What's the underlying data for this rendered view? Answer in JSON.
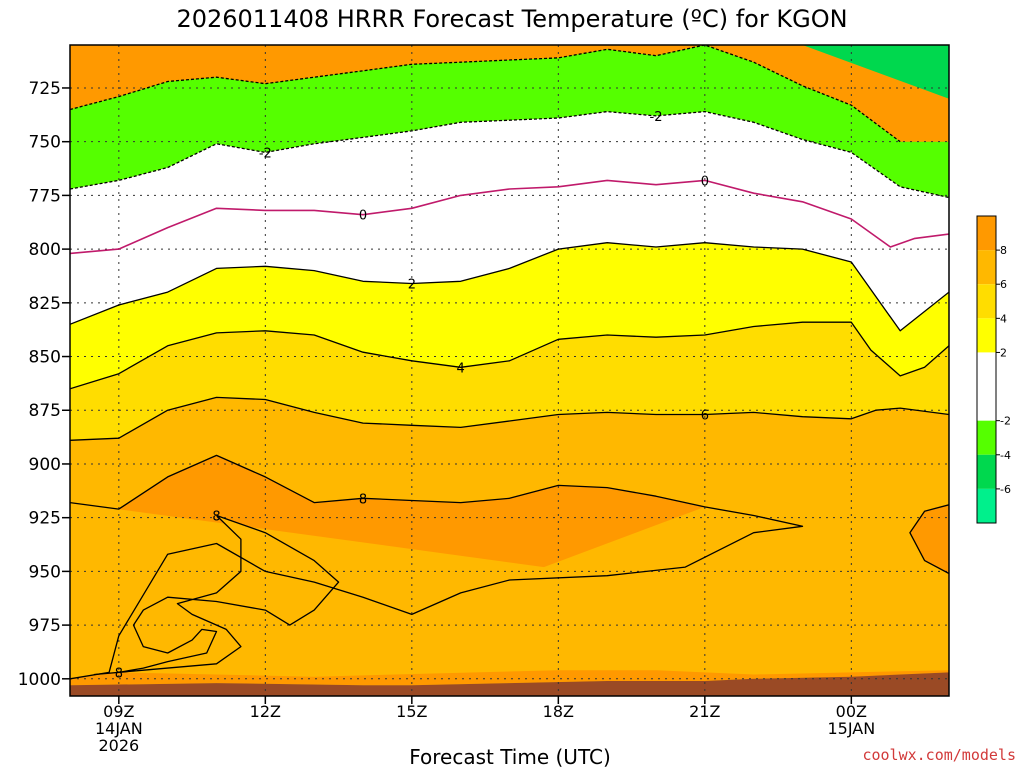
{
  "chart_data": {
    "type": "heatmap",
    "title": "2026011408 HRRR Forecast Temperature (ºC) for KGON",
    "xlabel": "Forecast Time (UTC)",
    "ylabel": "",
    "credit": "coolwx.com/models",
    "x_range": [
      8,
      26
    ],
    "y_range": [
      705,
      1008
    ],
    "y_ticks": [
      725,
      750,
      775,
      800,
      825,
      850,
      875,
      900,
      925,
      950,
      975,
      1000
    ],
    "x_ticks": [
      {
        "x": 9,
        "lines": [
          "09Z",
          "14JAN",
          "2026"
        ]
      },
      {
        "x": 12,
        "lines": [
          "12Z"
        ]
      },
      {
        "x": 15,
        "lines": [
          "15Z"
        ]
      },
      {
        "x": 18,
        "lines": [
          "18Z"
        ]
      },
      {
        "x": 21,
        "lines": [
          "21Z"
        ]
      },
      {
        "x": 24,
        "lines": [
          "00Z",
          "15JAN"
        ]
      }
    ],
    "grid": true,
    "colorbar": {
      "placement": "right",
      "bands": [
        {
          "range": "-8 to -6",
          "color": "#00f08c"
        },
        {
          "range": "-6 to -4",
          "color": "#00d84e"
        },
        {
          "range": "-4 to -2",
          "color": "#55ff00"
        },
        {
          "range": "-2 to 0",
          "color": "#ffffff"
        },
        {
          "range": "0 to 2",
          "color": "#ffffff"
        },
        {
          "range": "2 to 4",
          "color": "#ffff00"
        },
        {
          "range": "4 to 6",
          "color": "#ffdd00"
        },
        {
          "range": "6 to 8",
          "color": "#ffb800"
        },
        {
          "range": "8 to 10",
          "color": "#ff9900"
        }
      ],
      "tick_labels": [
        "8",
        "6",
        "4",
        "2",
        "-2",
        "-4",
        "-6"
      ]
    },
    "ground_color": "#9a4a25",
    "isotherms": [
      {
        "value": -4,
        "label": "",
        "style": "dashed",
        "points": [
          [
            8,
            735
          ],
          [
            9,
            729
          ],
          [
            10,
            722
          ],
          [
            11,
            720
          ],
          [
            12,
            723
          ],
          [
            13,
            720
          ],
          [
            14,
            717
          ],
          [
            15,
            714
          ],
          [
            16,
            713
          ],
          [
            17,
            712
          ],
          [
            18,
            711
          ],
          [
            19,
            707
          ],
          [
            20,
            710
          ],
          [
            21,
            705
          ],
          [
            22,
            713
          ],
          [
            23,
            724
          ],
          [
            24,
            733
          ],
          [
            25,
            750
          ]
        ]
      },
      {
        "value": -2,
        "label": "-2",
        "style": "dashed",
        "points": [
          [
            8,
            772
          ],
          [
            9,
            768
          ],
          [
            10,
            762
          ],
          [
            11,
            751
          ],
          [
            12,
            755
          ],
          [
            13,
            751
          ],
          [
            14,
            748
          ],
          [
            15,
            745
          ],
          [
            16,
            741
          ],
          [
            17,
            740
          ],
          [
            18,
            739
          ],
          [
            19,
            736
          ],
          [
            20,
            738
          ],
          [
            21,
            736
          ],
          [
            22,
            741
          ],
          [
            23,
            749
          ],
          [
            24,
            755
          ],
          [
            25,
            771
          ],
          [
            26,
            776
          ]
        ]
      },
      {
        "value": 0,
        "label": "0",
        "style": "solid",
        "color": "#c01a6b",
        "points": [
          [
            8,
            802
          ],
          [
            9,
            800
          ],
          [
            10,
            790
          ],
          [
            11,
            781
          ],
          [
            12,
            782
          ],
          [
            13,
            782
          ],
          [
            14,
            784
          ],
          [
            15,
            781
          ],
          [
            16,
            775
          ],
          [
            17,
            772
          ],
          [
            18,
            771
          ],
          [
            19,
            768
          ],
          [
            20,
            770
          ],
          [
            21,
            768
          ],
          [
            22,
            774
          ],
          [
            23,
            778
          ],
          [
            24,
            786
          ],
          [
            24.8,
            799
          ],
          [
            25.3,
            795
          ],
          [
            26,
            793
          ]
        ]
      },
      {
        "value": 2,
        "label": "2",
        "style": "solid",
        "color": "#000000",
        "points": [
          [
            8,
            835
          ],
          [
            9,
            826
          ],
          [
            10,
            820
          ],
          [
            11,
            809
          ],
          [
            12,
            808
          ],
          [
            13,
            810
          ],
          [
            14,
            815
          ],
          [
            15,
            816
          ],
          [
            16,
            815
          ],
          [
            17,
            809
          ],
          [
            18,
            800
          ],
          [
            19,
            797
          ],
          [
            20,
            799
          ],
          [
            21,
            797
          ],
          [
            22,
            799
          ],
          [
            23,
            800
          ],
          [
            24,
            806
          ],
          [
            25,
            838
          ],
          [
            26,
            820
          ]
        ]
      },
      {
        "value": 4,
        "label": "4",
        "style": "solid",
        "color": "#000000",
        "points": [
          [
            8,
            865
          ],
          [
            9,
            858
          ],
          [
            10,
            845
          ],
          [
            11,
            839
          ],
          [
            12,
            838
          ],
          [
            13,
            840
          ],
          [
            14,
            848
          ],
          [
            15,
            852
          ],
          [
            16,
            855
          ],
          [
            17,
            852
          ],
          [
            18,
            842
          ],
          [
            19,
            840
          ],
          [
            20,
            841
          ],
          [
            21,
            840
          ],
          [
            22,
            836
          ],
          [
            23,
            834
          ],
          [
            24,
            834
          ],
          [
            24.4,
            847
          ],
          [
            25,
            859
          ],
          [
            25.5,
            855
          ],
          [
            26,
            845
          ]
        ]
      },
      {
        "value": 6,
        "label": "6",
        "style": "solid",
        "color": "#000000",
        "points": [
          [
            8,
            889
          ],
          [
            9,
            888
          ],
          [
            10,
            875
          ],
          [
            11,
            869
          ],
          [
            12,
            870
          ],
          [
            13,
            876
          ],
          [
            14,
            881
          ],
          [
            15,
            882
          ],
          [
            16,
            883
          ],
          [
            17,
            880
          ],
          [
            18,
            877
          ],
          [
            19,
            876
          ],
          [
            20,
            877
          ],
          [
            21,
            877
          ],
          [
            22,
            876
          ],
          [
            23,
            878
          ],
          [
            24,
            879
          ],
          [
            24.5,
            875
          ],
          [
            25,
            874
          ],
          [
            26,
            877
          ]
        ]
      },
      {
        "value": 8,
        "label": "8",
        "style": "solid",
        "color": "#000000",
        "points": [
          [
            8,
            918
          ],
          [
            9,
            921
          ],
          [
            10,
            906
          ],
          [
            11,
            896
          ],
          [
            12,
            906
          ],
          [
            13,
            918
          ],
          [
            14,
            916
          ],
          [
            15,
            917
          ],
          [
            16,
            918
          ],
          [
            17,
            916
          ],
          [
            18,
            910
          ],
          [
            19,
            911
          ],
          [
            20,
            915
          ],
          [
            21,
            920
          ],
          [
            22,
            924
          ],
          [
            23,
            929
          ],
          [
            22,
            932
          ],
          [
            20.6,
            948
          ],
          [
            19,
            952
          ],
          [
            17,
            954
          ],
          [
            16,
            960
          ],
          [
            15,
            970
          ],
          [
            14,
            962
          ],
          [
            13,
            955
          ],
          [
            12,
            950
          ],
          [
            11,
            937
          ],
          [
            10,
            942
          ],
          [
            9,
            980
          ],
          [
            8.8,
            997
          ],
          [
            8,
            1000
          ]
        ]
      },
      {
        "value": 8,
        "label": "8",
        "style": "solid",
        "color": "#000000",
        "points": [
          [
            11,
            924
          ],
          [
            12,
            932
          ],
          [
            13,
            945
          ],
          [
            13.5,
            955
          ],
          [
            13,
            968
          ],
          [
            12.5,
            975
          ],
          [
            12,
            968
          ],
          [
            11,
            964
          ],
          [
            10,
            962
          ],
          [
            9.5,
            968
          ],
          [
            9.3,
            975
          ],
          [
            9.5,
            985
          ],
          [
            10,
            988
          ],
          [
            10.5,
            982
          ],
          [
            10.7,
            977
          ],
          [
            11,
            978
          ],
          [
            10.8,
            988
          ],
          [
            10,
            992
          ],
          [
            9.5,
            995
          ],
          [
            9,
            997
          ],
          [
            8.5,
            998
          ],
          [
            9.5,
            996
          ],
          [
            11,
            993
          ],
          [
            11.5,
            985
          ],
          [
            11.2,
            977
          ],
          [
            10.5,
            970
          ],
          [
            10.2,
            965
          ],
          [
            11,
            960
          ],
          [
            11.5,
            950
          ],
          [
            11.5,
            935
          ],
          [
            11,
            924
          ]
        ]
      },
      {
        "value": 8,
        "label": "",
        "style": "solid",
        "color": "#000000",
        "points": [
          [
            26,
            919
          ],
          [
            25.5,
            922
          ],
          [
            25.2,
            932
          ],
          [
            25.5,
            945
          ],
          [
            26,
            951
          ]
        ]
      }
    ],
    "surface": [
      [
        8,
        1003
      ],
      [
        11,
        1002
      ],
      [
        14,
        1003
      ],
      [
        15,
        1003
      ],
      [
        17,
        1002
      ],
      [
        19,
        1001
      ],
      [
        20,
        1001
      ],
      [
        21,
        1001
      ],
      [
        22,
        1000
      ],
      [
        24,
        999
      ],
      [
        26,
        997
      ]
    ]
  }
}
